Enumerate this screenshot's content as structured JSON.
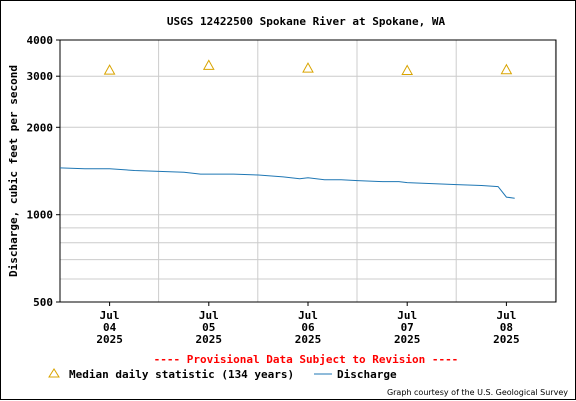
{
  "chart_data": {
    "type": "line",
    "title": "USGS 12422500 Spokane River at Spokane, WA",
    "ylabel": "Discharge, cubic feet per second",
    "yscale": "log",
    "ylim": [
      500,
      4000
    ],
    "y_ticks": [
      500,
      1000,
      2000,
      3000,
      4000
    ],
    "x_range": [
      "2025-07-03T12:00",
      "2025-07-08T12:00"
    ],
    "x_ticks": [
      {
        "at": "2025-07-04",
        "month": "Jul",
        "day": "04",
        "year": "2025"
      },
      {
        "at": "2025-07-05",
        "month": "Jul",
        "day": "05",
        "year": "2025"
      },
      {
        "at": "2025-07-06",
        "month": "Jul",
        "day": "06",
        "year": "2025"
      },
      {
        "at": "2025-07-07",
        "month": "Jul",
        "day": "07",
        "year": "2025"
      },
      {
        "at": "2025-07-08",
        "month": "Jul",
        "day": "08",
        "year": "2025"
      }
    ],
    "grid": true,
    "series": [
      {
        "name": "Discharge",
        "color": "#1f77b4",
        "x": [
          "2025-07-03T12:00",
          "2025-07-03T18:00",
          "2025-07-04T00:00",
          "2025-07-04T06:00",
          "2025-07-04T12:00",
          "2025-07-04T18:00",
          "2025-07-04T22:00",
          "2025-07-05T00:00",
          "2025-07-05T06:00",
          "2025-07-05T12:00",
          "2025-07-05T18:00",
          "2025-07-05T22:00",
          "2025-07-06T00:00",
          "2025-07-06T04:00",
          "2025-07-06T08:00",
          "2025-07-06T12:00",
          "2025-07-06T18:00",
          "2025-07-06T22:00",
          "2025-07-07T00:00",
          "2025-07-07T06:00",
          "2025-07-07T12:00",
          "2025-07-07T18:00",
          "2025-07-07T22:00",
          "2025-07-08T00:00",
          "2025-07-08T02:00"
        ],
        "values": [
          1450,
          1440,
          1440,
          1420,
          1410,
          1400,
          1380,
          1380,
          1380,
          1370,
          1350,
          1330,
          1340,
          1320,
          1320,
          1310,
          1300,
          1300,
          1290,
          1280,
          1270,
          1260,
          1250,
          1150,
          1140
        ]
      },
      {
        "name": "Median daily statistic (134 years)",
        "color": "#d9a400",
        "marker": "triangle",
        "x": [
          "2025-07-04T00:00",
          "2025-07-05T00:00",
          "2025-07-06T00:00",
          "2025-07-07T00:00",
          "2025-07-08T00:00"
        ],
        "values": [
          3150,
          3270,
          3200,
          3140,
          3160
        ]
      }
    ],
    "annotation": "---- Provisional Data Subject to Revision ----",
    "credit": "Graph courtesy of the U.S. Geological Survey",
    "legend_position": "bottom-left"
  }
}
